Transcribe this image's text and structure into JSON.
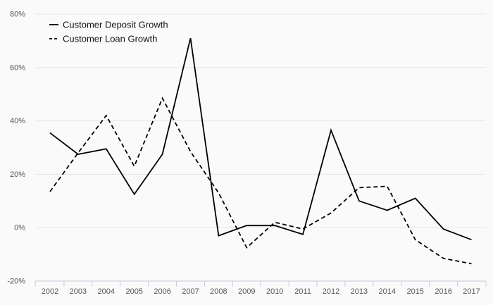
{
  "chart_data": {
    "type": "line",
    "categories": [
      "2002",
      "2003",
      "2004",
      "2005",
      "2006",
      "2007",
      "2008",
      "2009",
      "2010",
      "2011",
      "2012",
      "2013",
      "2014",
      "2015",
      "2016",
      "2017"
    ],
    "series": [
      {
        "name": "Customer Deposit Growth",
        "values": [
          35.5,
          27.5,
          29.5,
          12.5,
          27.5,
          71.0,
          -3.0,
          0.8,
          0.8,
          -2.5,
          36.5,
          10.0,
          6.5,
          11.0,
          -0.5,
          -4.5
        ],
        "color": "#000000",
        "dash": "solid"
      },
      {
        "name": "Customer Loan Growth",
        "values": [
          13.5,
          28.0,
          42.0,
          23.0,
          48.5,
          28.5,
          13.0,
          -7.5,
          2.0,
          -0.5,
          5.5,
          15.0,
          15.5,
          -4.5,
          -11.5,
          -13.5
        ],
        "color": "#000000",
        "dash": "dashed"
      }
    ],
    "title": "",
    "xlabel": "",
    "ylabel": "",
    "ylim": [
      -20,
      80
    ],
    "yticks": [
      -20,
      0,
      20,
      40,
      60,
      80
    ],
    "ytick_labels": [
      "-20%",
      "0%",
      "20%",
      "40%",
      "60%",
      "80%"
    ],
    "grid": "horizontal",
    "legend_position": "top-left"
  }
}
